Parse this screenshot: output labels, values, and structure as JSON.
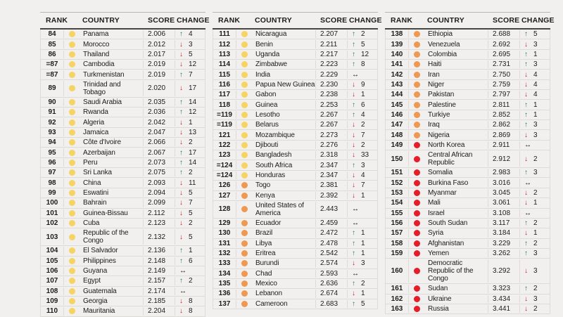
{
  "colors": {
    "yellow": "#f6d463",
    "orange": "#ef9852",
    "red": "#e51d2a",
    "up": "#1e7b46",
    "down": "#c0232b",
    "flat": "#131313"
  },
  "arrows": {
    "up": "↑",
    "down": "↓",
    "flat": "↔"
  },
  "chart_data": {
    "type": "table",
    "columns": [
      "RANK",
      "COUNTRY",
      "SCORE",
      "CHANGE"
    ],
    "tables": [
      {
        "rows": [
          {
            "rank": "84",
            "tier": "yellow",
            "country": "Panama",
            "score": "2.006",
            "dir": "up",
            "delta": "4"
          },
          {
            "rank": "85",
            "tier": "yellow",
            "country": "Morocco",
            "score": "2.012",
            "dir": "down",
            "delta": "3"
          },
          {
            "rank": "86",
            "tier": "yellow",
            "country": "Thailand",
            "score": "2.017",
            "dir": "down",
            "delta": "5"
          },
          {
            "rank": "=87",
            "tier": "yellow",
            "country": "Cambodia",
            "score": "2.019",
            "dir": "down",
            "delta": "12"
          },
          {
            "rank": "=87",
            "tier": "yellow",
            "country": "Turkmenistan",
            "score": "2.019",
            "dir": "up",
            "delta": "7"
          },
          {
            "rank": "89",
            "tier": "yellow",
            "country": "Trinidad and Tobago",
            "score": "2.020",
            "dir": "down",
            "delta": "17"
          },
          {
            "rank": "90",
            "tier": "yellow",
            "country": "Saudi Arabia",
            "score": "2.035",
            "dir": "up",
            "delta": "14"
          },
          {
            "rank": "91",
            "tier": "yellow",
            "country": "Rwanda",
            "score": "2.036",
            "dir": "up",
            "delta": "12"
          },
          {
            "rank": "92",
            "tier": "yellow",
            "country": "Algeria",
            "score": "2.042",
            "dir": "down",
            "delta": "1"
          },
          {
            "rank": "93",
            "tier": "yellow",
            "country": "Jamaica",
            "score": "2.047",
            "dir": "down",
            "delta": "13"
          },
          {
            "rank": "94",
            "tier": "yellow",
            "country": "Côte d'Ivoire",
            "score": "2.066",
            "dir": "down",
            "delta": "2"
          },
          {
            "rank": "95",
            "tier": "yellow",
            "country": "Azerbaijan",
            "score": "2.067",
            "dir": "up",
            "delta": "17"
          },
          {
            "rank": "96",
            "tier": "yellow",
            "country": "Peru",
            "score": "2.073",
            "dir": "up",
            "delta": "14"
          },
          {
            "rank": "97",
            "tier": "yellow",
            "country": "Sri Lanka",
            "score": "2.075",
            "dir": "up",
            "delta": "2"
          },
          {
            "rank": "98",
            "tier": "yellow",
            "country": "China",
            "score": "2.093",
            "dir": "down",
            "delta": "11"
          },
          {
            "rank": "99",
            "tier": "yellow",
            "country": "Eswatini",
            "score": "2.094",
            "dir": "down",
            "delta": "5"
          },
          {
            "rank": "100",
            "tier": "yellow",
            "country": "Bahrain",
            "score": "2.099",
            "dir": "down",
            "delta": "7"
          },
          {
            "rank": "101",
            "tier": "yellow",
            "country": "Guinea-Bissau",
            "score": "2.112",
            "dir": "down",
            "delta": "5"
          },
          {
            "rank": "102",
            "tier": "yellow",
            "country": "Cuba",
            "score": "2.123",
            "dir": "down",
            "delta": "2"
          },
          {
            "rank": "103",
            "tier": "yellow",
            "country": "Republic of the Congo",
            "score": "2.132",
            "dir": "down",
            "delta": "5"
          },
          {
            "rank": "104",
            "tier": "yellow",
            "country": "El Salvador",
            "score": "2.136",
            "dir": "up",
            "delta": "1"
          },
          {
            "rank": "105",
            "tier": "yellow",
            "country": "Philippines",
            "score": "2.148",
            "dir": "up",
            "delta": "6"
          },
          {
            "rank": "106",
            "tier": "yellow",
            "country": "Guyana",
            "score": "2.149",
            "dir": "flat",
            "delta": ""
          },
          {
            "rank": "107",
            "tier": "yellow",
            "country": "Egypt",
            "score": "2.157",
            "dir": "up",
            "delta": "2"
          },
          {
            "rank": "108",
            "tier": "yellow",
            "country": "Guatemala",
            "score": "2.174",
            "dir": "flat",
            "delta": ""
          },
          {
            "rank": "109",
            "tier": "yellow",
            "country": "Georgia",
            "score": "2.185",
            "dir": "down",
            "delta": "8"
          },
          {
            "rank": "110",
            "tier": "yellow",
            "country": "Mauritania",
            "score": "2.204",
            "dir": "down",
            "delta": "8"
          }
        ]
      },
      {
        "rows": [
          {
            "rank": "111",
            "tier": "yellow",
            "country": "Nicaragua",
            "score": "2.207",
            "dir": "up",
            "delta": "2"
          },
          {
            "rank": "112",
            "tier": "yellow",
            "country": "Benin",
            "score": "2.211",
            "dir": "up",
            "delta": "5"
          },
          {
            "rank": "113",
            "tier": "yellow",
            "country": "Uganda",
            "score": "2.217",
            "dir": "up",
            "delta": "12"
          },
          {
            "rank": "114",
            "tier": "yellow",
            "country": "Zimbabwe",
            "score": "2.223",
            "dir": "up",
            "delta": "8"
          },
          {
            "rank": "115",
            "tier": "yellow",
            "country": "India",
            "score": "2.229",
            "dir": "flat",
            "delta": ""
          },
          {
            "rank": "116",
            "tier": "yellow",
            "country": "Papua New Guinea",
            "score": "2.230",
            "dir": "down",
            "delta": "9"
          },
          {
            "rank": "117",
            "tier": "yellow",
            "country": "Gabon",
            "score": "2.238",
            "dir": "down",
            "delta": "1"
          },
          {
            "rank": "118",
            "tier": "yellow",
            "country": "Guinea",
            "score": "2.253",
            "dir": "up",
            "delta": "6"
          },
          {
            "rank": "=119",
            "tier": "yellow",
            "country": "Lesotho",
            "score": "2.267",
            "dir": "up",
            "delta": "4"
          },
          {
            "rank": "=119",
            "tier": "yellow",
            "country": "Belarus",
            "score": "2.267",
            "dir": "down",
            "delta": "2"
          },
          {
            "rank": "121",
            "tier": "yellow",
            "country": "Mozambique",
            "score": "2.273",
            "dir": "down",
            "delta": "7"
          },
          {
            "rank": "122",
            "tier": "yellow",
            "country": "Djibouti",
            "score": "2.276",
            "dir": "down",
            "delta": "2"
          },
          {
            "rank": "123",
            "tier": "yellow",
            "country": "Bangladesh",
            "score": "2.318",
            "dir": "down",
            "delta": "33"
          },
          {
            "rank": "=124",
            "tier": "yellow",
            "country": "South Africa",
            "score": "2.347",
            "dir": "up",
            "delta": "3"
          },
          {
            "rank": "=124",
            "tier": "yellow",
            "country": "Honduras",
            "score": "2.347",
            "dir": "down",
            "delta": "4"
          },
          {
            "rank": "126",
            "tier": "orange",
            "country": "Togo",
            "score": "2.381",
            "dir": "down",
            "delta": "7"
          },
          {
            "rank": "127",
            "tier": "orange",
            "country": "Kenya",
            "score": "2.392",
            "dir": "down",
            "delta": "1"
          },
          {
            "rank": "128",
            "tier": "orange",
            "country": "United States of America",
            "score": "2.443",
            "dir": "flat",
            "delta": ""
          },
          {
            "rank": "129",
            "tier": "orange",
            "country": "Ecuador",
            "score": "2.459",
            "dir": "flat",
            "delta": ""
          },
          {
            "rank": "130",
            "tier": "orange",
            "country": "Brazil",
            "score": "2.472",
            "dir": "up",
            "delta": "1"
          },
          {
            "rank": "131",
            "tier": "orange",
            "country": "Libya",
            "score": "2.478",
            "dir": "up",
            "delta": "1"
          },
          {
            "rank": "132",
            "tier": "orange",
            "country": "Eritrea",
            "score": "2.542",
            "dir": "up",
            "delta": "1"
          },
          {
            "rank": "133",
            "tier": "orange",
            "country": "Burundi",
            "score": "2.574",
            "dir": "down",
            "delta": "3"
          },
          {
            "rank": "134",
            "tier": "orange",
            "country": "Chad",
            "score": "2.593",
            "dir": "flat",
            "delta": ""
          },
          {
            "rank": "135",
            "tier": "orange",
            "country": "Mexico",
            "score": "2.636",
            "dir": "up",
            "delta": "2"
          },
          {
            "rank": "136",
            "tier": "orange",
            "country": "Lebanon",
            "score": "2.674",
            "dir": "down",
            "delta": "1"
          },
          {
            "rank": "137",
            "tier": "orange",
            "country": "Cameroon",
            "score": "2.683",
            "dir": "up",
            "delta": "5"
          }
        ]
      },
      {
        "rows": [
          {
            "rank": "138",
            "tier": "orange",
            "country": "Ethiopia",
            "score": "2.688",
            "dir": "up",
            "delta": "5"
          },
          {
            "rank": "139",
            "tier": "orange",
            "country": "Venezuela",
            "score": "2.692",
            "dir": "down",
            "delta": "3"
          },
          {
            "rank": "140",
            "tier": "orange",
            "country": "Colombia",
            "score": "2.695",
            "dir": "up",
            "delta": "1"
          },
          {
            "rank": "141",
            "tier": "orange",
            "country": "Haiti",
            "score": "2.731",
            "dir": "up",
            "delta": "3"
          },
          {
            "rank": "142",
            "tier": "orange",
            "country": "Iran",
            "score": "2.750",
            "dir": "down",
            "delta": "4"
          },
          {
            "rank": "143",
            "tier": "orange",
            "country": "Niger",
            "score": "2.759",
            "dir": "down",
            "delta": "4"
          },
          {
            "rank": "144",
            "tier": "orange",
            "country": "Pakistan",
            "score": "2.797",
            "dir": "down",
            "delta": "4"
          },
          {
            "rank": "145",
            "tier": "orange",
            "country": "Palestine",
            "score": "2.811",
            "dir": "up",
            "delta": "1"
          },
          {
            "rank": "146",
            "tier": "orange",
            "country": "Turkiye",
            "score": "2.852",
            "dir": "up",
            "delta": "1"
          },
          {
            "rank": "147",
            "tier": "orange",
            "country": "Iraq",
            "score": "2.862",
            "dir": "up",
            "delta": "3"
          },
          {
            "rank": "148",
            "tier": "orange",
            "country": "Nigeria",
            "score": "2.869",
            "dir": "down",
            "delta": "3"
          },
          {
            "rank": "149",
            "tier": "red",
            "country": "North Korea",
            "score": "2.911",
            "dir": "flat",
            "delta": ""
          },
          {
            "rank": "150",
            "tier": "red",
            "country": "Central African Republic",
            "score": "2.912",
            "dir": "down",
            "delta": "2"
          },
          {
            "rank": "151",
            "tier": "red",
            "country": "Somalia",
            "score": "2.983",
            "dir": "up",
            "delta": "3"
          },
          {
            "rank": "152",
            "tier": "red",
            "country": "Burkina Faso",
            "score": "3.016",
            "dir": "flat",
            "delta": ""
          },
          {
            "rank": "153",
            "tier": "red",
            "country": "Myanmar",
            "score": "3.045",
            "dir": "down",
            "delta": "2"
          },
          {
            "rank": "154",
            "tier": "red",
            "country": "Mali",
            "score": "3.061",
            "dir": "down",
            "delta": "1"
          },
          {
            "rank": "155",
            "tier": "red",
            "country": "Israel",
            "score": "3.108",
            "dir": "flat",
            "delta": ""
          },
          {
            "rank": "156",
            "tier": "red",
            "country": "South Sudan",
            "score": "3.117",
            "dir": "up",
            "delta": "2"
          },
          {
            "rank": "157",
            "tier": "red",
            "country": "Syria",
            "score": "3.184",
            "dir": "down",
            "delta": "1"
          },
          {
            "rank": "158",
            "tier": "red",
            "country": "Afghanistan",
            "score": "3.229",
            "dir": "up",
            "delta": "2"
          },
          {
            "rank": "159",
            "tier": "red",
            "country": "Yemen",
            "score": "3.262",
            "dir": "up",
            "delta": "3"
          },
          {
            "rank": "160",
            "tier": "red",
            "country": "Democratic Republic of the Congo",
            "score": "3.292",
            "dir": "down",
            "delta": "3"
          },
          {
            "rank": "161",
            "tier": "red",
            "country": "Sudan",
            "score": "3.323",
            "dir": "up",
            "delta": "2"
          },
          {
            "rank": "162",
            "tier": "red",
            "country": "Ukraine",
            "score": "3.434",
            "dir": "down",
            "delta": "3"
          },
          {
            "rank": "163",
            "tier": "red",
            "country": "Russia",
            "score": "3.441",
            "dir": "down",
            "delta": "2"
          }
        ]
      }
    ]
  }
}
